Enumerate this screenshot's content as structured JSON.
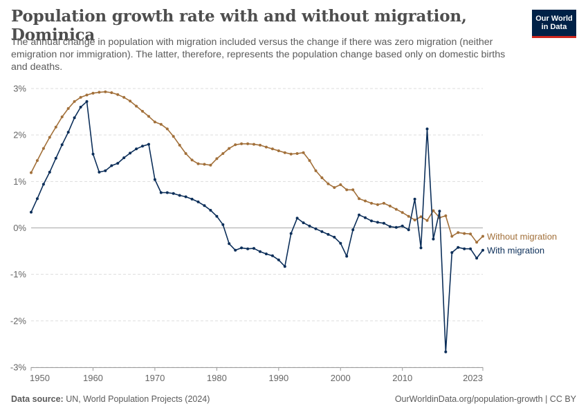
{
  "header": {
    "title": "Population growth rate with and without migration, Dominica",
    "subtitle": "The annual change in population with migration included versus the change if there was zero migration (neither emigration nor immigration). The latter, therefore, represents the population change based only on domestic births and deaths.",
    "logo_line1": "Our World",
    "logo_line2": "in Data"
  },
  "footer": {
    "source_label": "Data source:",
    "source_text": "UN, World Population Projects (2024)",
    "url_text": "OurWorldinData.org/population-growth | CC BY"
  },
  "colors": {
    "without_migration": "#a2703a",
    "with_migration": "#0b2e59",
    "zero_line": "#a6a6a6",
    "grid": "#dddddd",
    "logo_bg": "#002147",
    "logo_accent": "#ce261e"
  },
  "chart_data": {
    "type": "line",
    "x_ticks": [
      "1950",
      "1960",
      "1970",
      "1980",
      "1990",
      "2000",
      "2010",
      "2023"
    ],
    "y_ticks": [
      "3%",
      "2%",
      "1%",
      "0%",
      "-1%",
      "-2%",
      "-3%"
    ],
    "y_tick_values": [
      3,
      2,
      1,
      0,
      -1,
      -2,
      -3
    ],
    "x_tick_values": [
      1950,
      1960,
      1970,
      1980,
      1990,
      2000,
      2010,
      2023
    ],
    "xlim": [
      1950,
      2023
    ],
    "ylim": [
      -3,
      3
    ],
    "grid": true,
    "x": [
      1950,
      1951,
      1952,
      1953,
      1954,
      1955,
      1956,
      1957,
      1958,
      1959,
      1960,
      1961,
      1962,
      1963,
      1964,
      1965,
      1966,
      1967,
      1968,
      1969,
      1970,
      1971,
      1972,
      1973,
      1974,
      1975,
      1976,
      1977,
      1978,
      1979,
      1980,
      1981,
      1982,
      1983,
      1984,
      1985,
      1986,
      1987,
      1988,
      1989,
      1990,
      1991,
      1992,
      1993,
      1994,
      1995,
      1996,
      1997,
      1998,
      1999,
      2000,
      2001,
      2002,
      2003,
      2004,
      2005,
      2006,
      2007,
      2008,
      2009,
      2010,
      2011,
      2012,
      2013,
      2014,
      2015,
      2016,
      2017,
      2018,
      2019,
      2020,
      2021,
      2022,
      2023
    ],
    "series": [
      {
        "name": "Without migration",
        "values": [
          1.19,
          1.45,
          1.71,
          1.95,
          2.17,
          2.39,
          2.57,
          2.72,
          2.81,
          2.86,
          2.9,
          2.92,
          2.93,
          2.91,
          2.87,
          2.81,
          2.73,
          2.62,
          2.51,
          2.4,
          2.28,
          2.23,
          2.13,
          1.97,
          1.78,
          1.6,
          1.46,
          1.38,
          1.37,
          1.35,
          1.49,
          1.6,
          1.71,
          1.79,
          1.81,
          1.81,
          1.8,
          1.78,
          1.74,
          1.7,
          1.66,
          1.62,
          1.59,
          1.6,
          1.62,
          1.45,
          1.23,
          1.08,
          0.95,
          0.87,
          0.93,
          0.82,
          0.82,
          0.63,
          0.58,
          0.53,
          0.5,
          0.53,
          0.47,
          0.4,
          0.33,
          0.25,
          0.17,
          0.24,
          0.16,
          0.37,
          0.22,
          0.26,
          -0.18,
          -0.1,
          -0.12,
          -0.13,
          -0.31,
          -0.18
        ]
      },
      {
        "name": "With migration",
        "values": [
          0.34,
          0.63,
          0.94,
          1.2,
          1.5,
          1.79,
          2.06,
          2.37,
          2.6,
          2.72,
          1.59,
          1.2,
          1.23,
          1.34,
          1.39,
          1.51,
          1.61,
          1.7,
          1.76,
          1.8,
          1.04,
          0.76,
          0.76,
          0.74,
          0.7,
          0.67,
          0.62,
          0.56,
          0.48,
          0.38,
          0.25,
          0.07,
          -0.34,
          -0.48,
          -0.43,
          -0.45,
          -0.44,
          -0.51,
          -0.56,
          -0.6,
          -0.69,
          -0.83,
          -0.12,
          0.21,
          0.11,
          0.04,
          -0.02,
          -0.08,
          -0.14,
          -0.2,
          -0.33,
          -0.61,
          -0.04,
          0.28,
          0.22,
          0.15,
          0.12,
          0.1,
          0.03,
          0.01,
          0.04,
          -0.04,
          0.62,
          -0.43,
          2.13,
          -0.24,
          0.36,
          -2.67,
          -0.53,
          -0.42,
          -0.45,
          -0.45,
          -0.65,
          -0.48
        ]
      }
    ]
  }
}
